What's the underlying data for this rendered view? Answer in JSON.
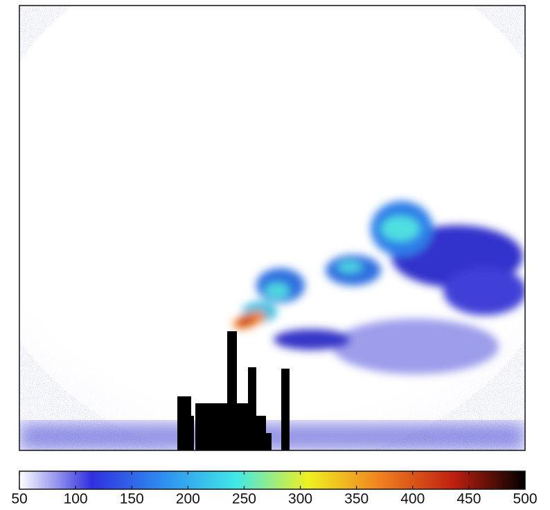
{
  "chart_data": {
    "type": "image-colorbar",
    "colorbar": {
      "lim": [
        50,
        500
      ],
      "ticks": [
        50,
        100,
        150,
        200,
        250,
        300,
        350,
        400,
        450,
        500
      ],
      "colormap": [
        "#ffffff",
        "#3030e0",
        "#2f8ff0",
        "#40e8e8",
        "#f0f020",
        "#f08020",
        "#c02010",
        "#000000"
      ]
    }
  }
}
